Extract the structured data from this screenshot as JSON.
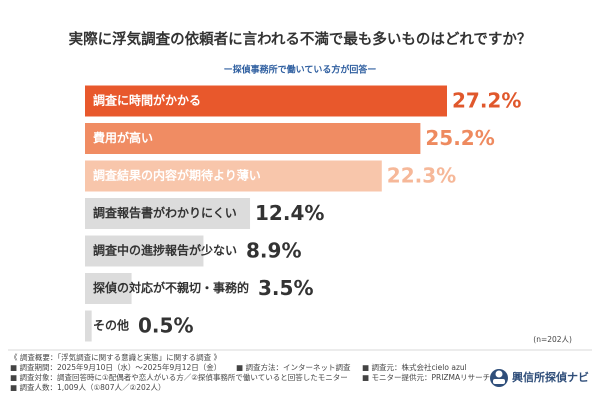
{
  "chart_data": {
    "type": "bar",
    "orientation": "horizontal",
    "title": "実際に浮気調査の依頼者に言われる不満で最も多いものはどれですか？",
    "subtitle": "ー探偵事務所で働いている方が回答ー",
    "categories": [
      "調査に時間がかかる",
      "費用が高い",
      "調査結果の内容が期待より薄い",
      "調査報告書がわかりにくい",
      "調査中の進捗報告が少ない",
      "探偵の対応が不親切・事務的",
      "その他"
    ],
    "values": [
      27.2,
      25.2,
      22.3,
      12.4,
      8.9,
      3.5,
      0.5
    ],
    "value_labels": [
      "27.2%",
      "25.2%",
      "22.3%",
      "12.4%",
      "8.9%",
      "3.5%",
      "0.5%"
    ],
    "bar_colors": [
      "#e8582c",
      "#f08c63",
      "#f8c6ab",
      "#dcdcdc",
      "#dcdcdc",
      "#dcdcdc",
      "#dcdcdc"
    ],
    "category_label_colors": [
      "#ffffff",
      "#ffffff",
      "#ffffff",
      "#333333",
      "#333333",
      "#333333",
      "#333333"
    ],
    "value_label_colors": [
      "#e0582c",
      "#ee8a5f",
      "#f6b899",
      "#333333",
      "#333333",
      "#333333",
      "#333333"
    ],
    "sample_note": "(n=202人)"
  },
  "survey_notes": {
    "heading": "《 調査概要：「浮気調査に関する意識と実態」に関する調査 》",
    "rows": [
      [
        "■ 調査期間：2025年9月10日（水）～2025年9月12日（金）",
        "■ 調査方法：インターネット調査",
        "■ 調査元：株式会社cielo azul"
      ],
      [
        "■ 調査対象：調査回答時に①配偶者や恋人がいる方／②探偵事務所で働いていると回答したモニター",
        "■ モニター提供元：PRIZMAリサーチ"
      ],
      [
        "■ 調査人数：1,009人（①807人／②202人）"
      ]
    ]
  },
  "logo": {
    "text": "興信所探偵ナビ"
  }
}
